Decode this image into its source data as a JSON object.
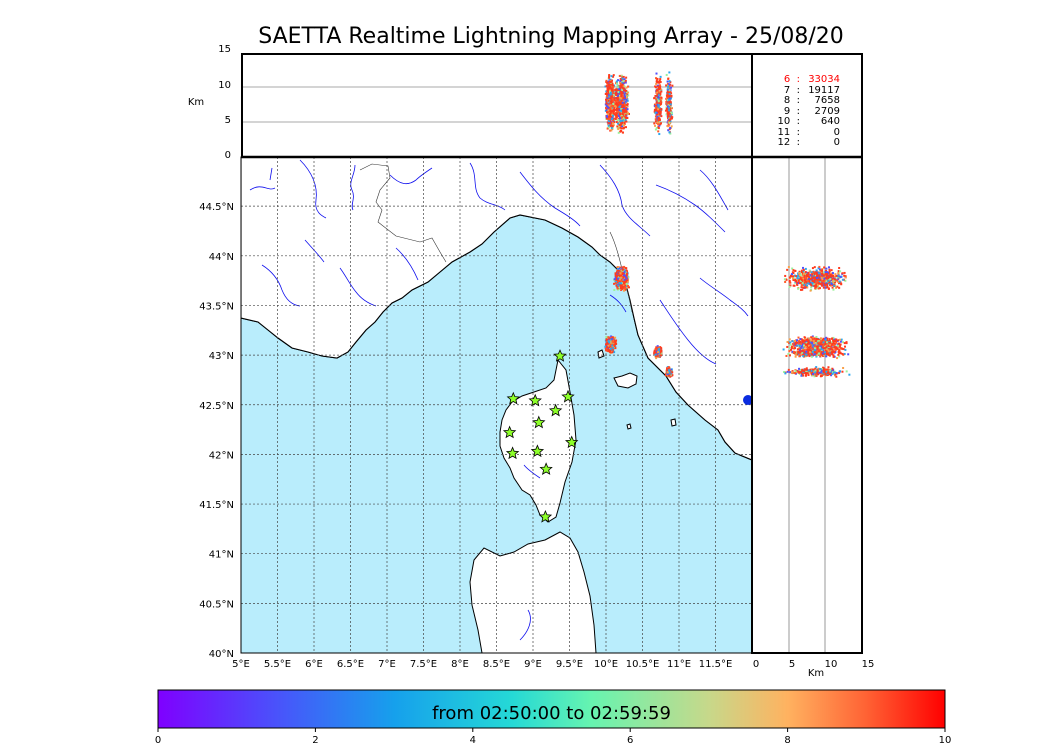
{
  "title": "SAETTA Realtime Lightning Mapping Array - 25/08/20",
  "top_panel": {
    "ylabel": "Km",
    "yticks": [
      "15",
      "10",
      "5",
      "0"
    ]
  },
  "right_panel": {
    "xlabel": "Km",
    "xticks": [
      "0",
      "5",
      "10",
      "15"
    ]
  },
  "map": {
    "lon_ticks": [
      "5°E",
      "5.5°E",
      "6°E",
      "6.5°E",
      "7°E",
      "7.5°E",
      "8°E",
      "8.5°E",
      "9°E",
      "9.5°E",
      "10°E",
      "10.5°E",
      "11°E",
      "11.5°E"
    ],
    "lat_ticks": [
      "44.5°N",
      "44°N",
      "43.5°N",
      "43°N",
      "42.5°N",
      "42°N",
      "41.5°N",
      "41°N",
      "40.5°N",
      "40°N"
    ],
    "lon_range": [
      5,
      12
    ],
    "lat_range": [
      40,
      45
    ],
    "sea_color": "#b9edfc",
    "land_color": "#ffffff",
    "river_color": "#1010ee"
  },
  "stations": [
    {
      "lon": 9.37,
      "lat": 42.99
    },
    {
      "lon": 8.73,
      "lat": 42.56
    },
    {
      "lon": 9.03,
      "lat": 42.54
    },
    {
      "lon": 9.48,
      "lat": 42.58
    },
    {
      "lon": 9.31,
      "lat": 42.44
    },
    {
      "lon": 9.08,
      "lat": 42.32
    },
    {
      "lon": 8.68,
      "lat": 42.22
    },
    {
      "lon": 9.53,
      "lat": 42.12
    },
    {
      "lon": 8.72,
      "lat": 42.01
    },
    {
      "lon": 9.06,
      "lat": 42.03
    },
    {
      "lon": 9.18,
      "lat": 41.85
    },
    {
      "lon": 9.17,
      "lat": 41.37
    }
  ],
  "lightning_clusters": [
    {
      "lon": 10.2,
      "lat": 43.78,
      "spread": 0.12
    },
    {
      "lon": 10.05,
      "lat": 43.12,
      "spread": 0.09
    },
    {
      "lon": 10.7,
      "lat": 43.04,
      "spread": 0.06
    },
    {
      "lon": 10.85,
      "lat": 42.84,
      "spread": 0.05
    }
  ],
  "counts": [
    {
      "level": "6",
      "value": "33034",
      "color": "#ff0000"
    },
    {
      "level": "7",
      "value": "19117",
      "color": "#000000"
    },
    {
      "level": "8",
      "value": "7658",
      "color": "#000000"
    },
    {
      "level": "9",
      "value": "2709",
      "color": "#000000"
    },
    {
      "level": "10",
      "value": "640",
      "color": "#000000"
    },
    {
      "level": "11",
      "value": "0",
      "color": "#000000"
    },
    {
      "level": "12",
      "value": "0",
      "color": "#000000"
    }
  ],
  "colorbar": {
    "label": "from 02:50:00 to 02:59:59",
    "ticks": [
      "0",
      "2",
      "4",
      "6",
      "8",
      "10"
    ],
    "range": [
      0,
      10
    ]
  }
}
